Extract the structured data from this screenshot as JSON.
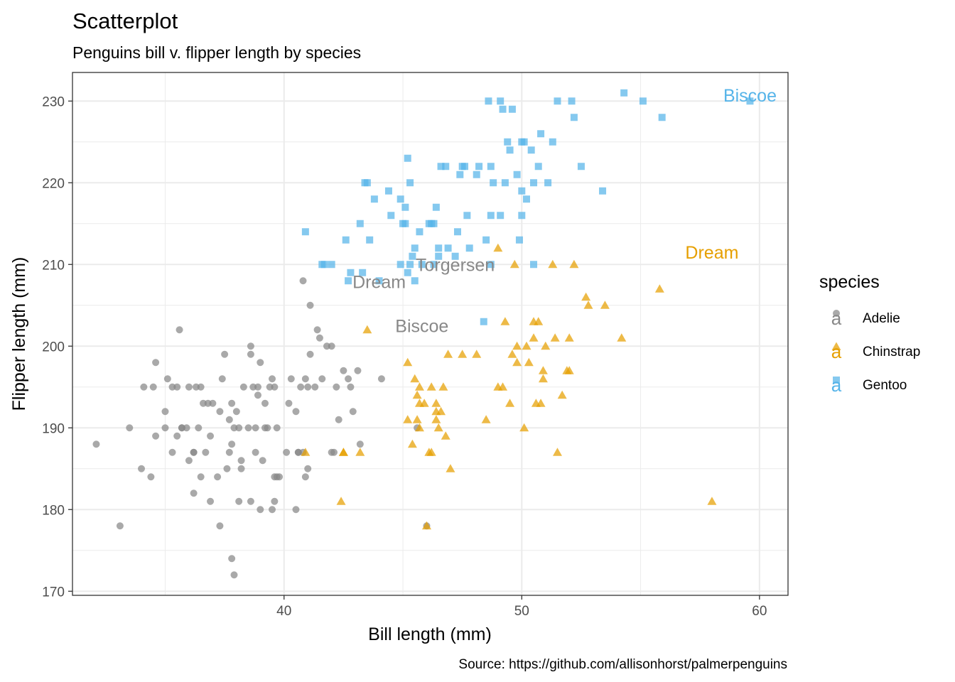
{
  "chart_data": {
    "type": "scatter",
    "title": "Scatterplot",
    "subtitle": "Penguins bill v. flipper length by species",
    "xlabel": "Bill length (mm)",
    "ylabel": "Flipper length (mm)",
    "caption": "Source: https://github.com/allisonhorst/palmerpenguins",
    "xlim": [
      31.1,
      61.2
    ],
    "ylim": [
      169.5,
      233.5
    ],
    "xticks": [
      40,
      50,
      60
    ],
    "yticks": [
      170,
      180,
      190,
      200,
      210,
      220,
      230
    ],
    "grid": true,
    "legend": {
      "title": "species",
      "position": "right",
      "key_glyph": "a",
      "entries": [
        "Adelie",
        "Chinstrap",
        "Gentoo"
      ]
    },
    "colors": {
      "Adelie": "#888888",
      "Chinstrap": "#E69F00",
      "Gentoo": "#56B4E9"
    },
    "shapes": {
      "Adelie": "circle",
      "Chinstrap": "triangle",
      "Gentoo": "square"
    },
    "labels": [
      {
        "text": "Torgersen",
        "x": 47.2,
        "y": 210,
        "series": "Adelie"
      },
      {
        "text": "Dream",
        "x": 44.0,
        "y": 207.9,
        "series": "Adelie"
      },
      {
        "text": "Biscoe",
        "x": 45.8,
        "y": 202.5,
        "series": "Adelie"
      },
      {
        "text": "Dream",
        "x": 58.0,
        "y": 211.5,
        "series": "Chinstrap"
      },
      {
        "text": "Biscoe",
        "x": 59.6,
        "y": 230.7,
        "series": "Gentoo"
      }
    ],
    "series": [
      {
        "name": "Adelie",
        "x": [
          32.1,
          33.1,
          33.5,
          34.0,
          34.4,
          34.6,
          34.6,
          35.0,
          35.1,
          35.3,
          35.3,
          35.5,
          35.5,
          35.6,
          35.7,
          35.9,
          36.0,
          36.0,
          36.2,
          36.2,
          36.3,
          36.4,
          36.5,
          36.6,
          36.7,
          36.8,
          36.9,
          37.0,
          37.2,
          37.3,
          37.3,
          37.6,
          37.7,
          37.8,
          37.8,
          37.8,
          37.9,
          38.1,
          38.1,
          38.2,
          38.3,
          38.5,
          38.6,
          38.6,
          38.7,
          38.8,
          38.8,
          38.9,
          39.0,
          39.1,
          39.2,
          39.3,
          39.5,
          39.5,
          39.6,
          39.6,
          39.7,
          39.7,
          39.8,
          40.1,
          40.2,
          40.3,
          40.5,
          40.6,
          40.7,
          40.8,
          40.9,
          41.0,
          41.1,
          41.1,
          41.3,
          41.4,
          41.5,
          41.6,
          41.8,
          42.0,
          42.1,
          42.2,
          42.3,
          42.5,
          42.7,
          42.8,
          42.9,
          43.1,
          43.2,
          44.1,
          45.6,
          46.0,
          37.5,
          35.7,
          38.0,
          39.4,
          40.5,
          36.9,
          37.9,
          34.5,
          40.9,
          38.2,
          35.0,
          39.6,
          36.2,
          41.0,
          38.6,
          37.7,
          39.0,
          40.6,
          40.8,
          36.5,
          38.9,
          39.2,
          34.1,
          42.0,
          37.4
        ],
        "y": [
          188,
          178,
          190,
          185,
          184,
          189,
          198,
          190,
          196,
          187,
          195,
          189,
          195,
          202,
          190,
          190,
          195,
          186,
          187,
          182,
          195,
          190,
          184,
          193,
          187,
          193,
          189,
          193,
          184,
          178,
          192,
          185,
          187,
          188,
          193,
          174,
          172,
          181,
          190,
          185,
          195,
          190,
          181,
          199,
          195,
          190,
          187,
          194,
          180,
          186,
          193,
          190,
          180,
          196,
          181,
          195,
          190,
          184,
          184,
          187,
          193,
          196,
          180,
          187,
          195,
          208,
          184,
          195,
          205,
          199,
          195,
          202,
          201,
          196,
          200,
          187,
          187,
          195,
          191,
          197,
          196,
          195,
          192,
          197,
          188,
          196,
          190,
          178,
          199,
          190,
          192,
          195,
          192,
          181,
          190,
          195,
          196,
          186,
          192,
          184,
          187,
          185,
          200,
          191,
          198,
          187,
          187,
          195,
          195,
          190,
          195,
          200,
          196
        ]
      },
      {
        "name": "Chinstrap",
        "x": [
          40.9,
          42.4,
          42.5,
          42.5,
          43.2,
          43.5,
          45.2,
          45.2,
          45.4,
          45.5,
          45.6,
          45.6,
          45.7,
          45.7,
          45.9,
          46.0,
          46.1,
          46.2,
          46.2,
          46.4,
          46.4,
          46.5,
          46.6,
          46.7,
          46.8,
          46.9,
          47.0,
          47.5,
          48.1,
          48.5,
          49.0,
          49.2,
          49.3,
          49.5,
          49.6,
          49.7,
          49.8,
          50.1,
          50.2,
          50.3,
          50.5,
          50.5,
          50.6,
          50.7,
          50.8,
          50.9,
          51.0,
          51.3,
          51.4,
          51.5,
          51.7,
          51.9,
          52.0,
          52.0,
          52.2,
          52.7,
          52.8,
          53.5,
          54.2,
          55.8,
          58.0,
          49.0,
          50.9,
          49.8,
          45.7,
          46.4
        ],
        "y": [
          187,
          181,
          187,
          187,
          187,
          202,
          191,
          198,
          188,
          196,
          194,
          191,
          190,
          195,
          193,
          178,
          187,
          195,
          187,
          191,
          193,
          190,
          192,
          195,
          189,
          199,
          185,
          199,
          199,
          191,
          212,
          195,
          203,
          193,
          199,
          210,
          198,
          190,
          200,
          198,
          201,
          203,
          193,
          203,
          193,
          196,
          200,
          210,
          201,
          187,
          194,
          197,
          201,
          197,
          210,
          206,
          205,
          205,
          201,
          207,
          181,
          195,
          197,
          200,
          193,
          192
        ]
      },
      {
        "name": "Gentoo",
        "x": [
          40.9,
          41.6,
          41.7,
          42.0,
          42.6,
          42.7,
          42.8,
          43.2,
          43.3,
          43.4,
          43.5,
          43.6,
          44.0,
          44.4,
          44.5,
          44.9,
          45.0,
          45.1,
          45.2,
          45.3,
          45.3,
          45.4,
          45.5,
          45.5,
          45.7,
          45.8,
          46.1,
          46.2,
          46.3,
          46.4,
          46.5,
          46.6,
          46.8,
          46.9,
          47.2,
          47.4,
          47.5,
          47.6,
          47.7,
          47.8,
          48.1,
          48.2,
          48.4,
          48.5,
          48.6,
          48.7,
          48.7,
          48.8,
          49.1,
          49.2,
          49.3,
          49.4,
          49.5,
          49.6,
          49.8,
          49.9,
          50.0,
          50.0,
          50.1,
          50.2,
          50.4,
          50.5,
          50.7,
          50.8,
          51.1,
          51.3,
          51.5,
          52.1,
          52.2,
          52.5,
          53.4,
          54.3,
          55.1,
          55.9,
          59.6,
          44.9,
          45.2,
          46.3,
          47.3,
          48.7,
          50.0,
          49.1,
          45.1,
          43.8,
          46.5,
          50.5
        ],
        "y": [
          214,
          210,
          210,
          210,
          213,
          208,
          209,
          215,
          209,
          220,
          220,
          213,
          208,
          219,
          216,
          210,
          215,
          215,
          223,
          210,
          220,
          211,
          212,
          208,
          214,
          210,
          215,
          215,
          210,
          217,
          212,
          222,
          222,
          212,
          211,
          221,
          222,
          222,
          216,
          212,
          221,
          222,
          203,
          213,
          230,
          222,
          210,
          220,
          230,
          229,
          220,
          225,
          224,
          229,
          221,
          213,
          225,
          219,
          225,
          218,
          224,
          220,
          222,
          226,
          220,
          225,
          230,
          230,
          228,
          222,
          219,
          231,
          230,
          228,
          230,
          218,
          209,
          215,
          214,
          216,
          216,
          216,
          217,
          218,
          211,
          210
        ]
      }
    ]
  }
}
